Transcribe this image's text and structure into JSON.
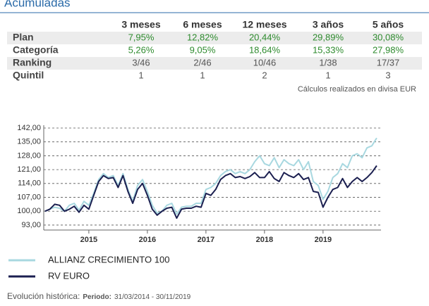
{
  "header": {
    "title": "Acumuladas"
  },
  "table": {
    "columns": [
      "3 meses",
      "6 meses",
      "12 meses",
      "3 años",
      "5 años"
    ],
    "rows": [
      {
        "label": "Plan",
        "color": "#2e8b2e",
        "cells": [
          "7,95%",
          "12,82%",
          "20,44%",
          "29,89%",
          "30,08%"
        ]
      },
      {
        "label": "Categoría",
        "color": "#2e8b2e",
        "cells": [
          "5,26%",
          "9,05%",
          "18,64%",
          "15,33%",
          "27,98%"
        ]
      },
      {
        "label": "Ranking",
        "color": "#555555",
        "cells": [
          "3/46",
          "2/46",
          "10/46",
          "1/38",
          "17/37"
        ]
      },
      {
        "label": "Quintil",
        "color": "#555555",
        "cells": [
          "1",
          "1",
          "2",
          "1",
          "3"
        ]
      }
    ],
    "note": "Cálculos realizados en divisa EUR"
  },
  "chart_data": {
    "type": "line",
    "x": [
      2014.25,
      2014.333,
      2014.417,
      2014.5,
      2014.583,
      2014.667,
      2014.75,
      2014.833,
      2014.917,
      2015,
      2015.083,
      2015.167,
      2015.25,
      2015.333,
      2015.417,
      2015.5,
      2015.583,
      2015.667,
      2015.75,
      2015.833,
      2015.917,
      2016,
      2016.083,
      2016.167,
      2016.25,
      2016.333,
      2016.417,
      2016.5,
      2016.583,
      2016.667,
      2016.75,
      2016.833,
      2016.917,
      2017,
      2017.083,
      2017.167,
      2017.25,
      2017.333,
      2017.417,
      2017.5,
      2017.583,
      2017.667,
      2017.75,
      2017.833,
      2017.917,
      2018,
      2018.083,
      2018.167,
      2018.25,
      2018.333,
      2018.417,
      2018.5,
      2018.583,
      2018.667,
      2018.75,
      2018.833,
      2018.917,
      2019,
      2019.083,
      2019.167,
      2019.25,
      2019.333,
      2019.417,
      2019.5,
      2019.583,
      2019.667,
      2019.75,
      2019.833,
      2019.917
    ],
    "series": [
      {
        "name": "ALLIANZ CRECIMIENTO 100",
        "color": "#a8d8e0",
        "values": [
          100,
          101,
          102,
          101.5,
          100,
          103,
          104,
          100.5,
          105,
          103,
          109,
          116,
          119,
          117,
          118,
          113,
          119,
          111,
          105,
          113,
          116,
          110,
          103,
          99,
          100,
          103,
          104,
          98.5,
          102,
          102.5,
          102.5,
          104,
          104,
          111,
          112,
          114,
          118,
          120,
          121,
          119,
          120,
          119,
          121,
          125,
          128,
          124,
          123,
          127,
          122,
          126,
          124,
          123,
          126,
          121,
          125,
          115,
          113,
          106,
          110,
          117,
          119,
          124,
          122,
          128,
          129,
          127,
          132,
          133,
          137
        ]
      },
      {
        "name": "RV EURO",
        "color": "#1b1f50",
        "values": [
          100,
          101,
          103.5,
          103,
          100,
          101,
          102.5,
          99.5,
          103,
          101,
          108,
          115,
          118,
          116.5,
          117,
          112,
          118,
          110,
          104,
          111,
          114,
          108,
          101,
          98,
          100,
          101.5,
          102,
          96.5,
          101,
          101.5,
          101.5,
          102.5,
          102,
          109,
          108,
          111,
          116,
          118,
          119,
          117,
          117.5,
          116.5,
          117.5,
          119.5,
          117,
          117,
          120,
          116.5,
          115,
          119.5,
          118,
          117,
          119,
          116,
          117,
          110,
          109.5,
          102,
          107,
          111,
          112,
          116.5,
          112,
          115,
          117,
          115,
          117,
          119.5,
          123
        ]
      }
    ],
    "xlim": [
      2014.23,
      2019.99
    ],
    "xticks": [
      2015,
      2016,
      2017,
      2018,
      2019
    ],
    "ylim": [
      90.5,
      142
    ],
    "yticks": [
      {
        "value": 93,
        "label": "93,00"
      },
      {
        "value": 100,
        "label": "100,00"
      },
      {
        "value": 107,
        "label": "107,00"
      },
      {
        "value": 114,
        "label": "114,00"
      },
      {
        "value": 121,
        "label": "121,00"
      },
      {
        "value": 128,
        "label": "128,00"
      },
      {
        "value": 135,
        "label": "135,00"
      },
      {
        "value": 142,
        "label": "142,00"
      }
    ],
    "grid": true
  },
  "footer": {
    "label": "Evolución histórica:",
    "period_label": "Periodo:",
    "period": "31/03/2014 - 30/11/2019"
  }
}
